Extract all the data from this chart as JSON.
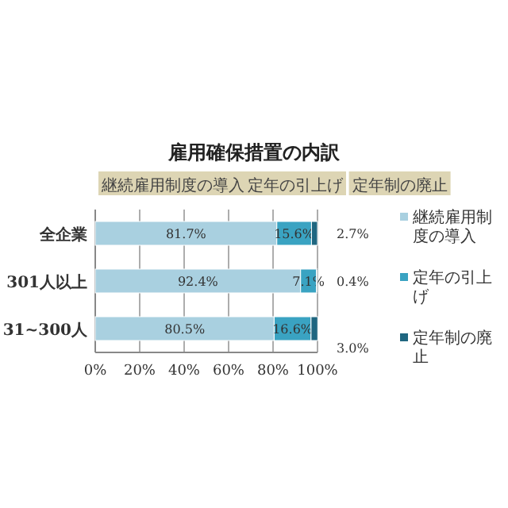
{
  "chart_data": {
    "type": "bar",
    "orientation": "horizontal",
    "stacked": true,
    "title": "雇用確保措置の内訳",
    "categories": [
      "全企業",
      "301人以上",
      "31~300人"
    ],
    "series": [
      {
        "name": "継続雇用制度の導入",
        "color": "#a9d0e0",
        "values": [
          81.7,
          92.4,
          80.5
        ],
        "value_labels": [
          "81.7%",
          "92.4%",
          "80.5%"
        ]
      },
      {
        "name": "定年の引上げ",
        "color": "#3aa3c2",
        "values": [
          15.6,
          7.1,
          16.6
        ],
        "value_labels": [
          "15.6%",
          "7.1%",
          "16.6%"
        ]
      },
      {
        "name": "定年制の廃止",
        "color": "#1f6680",
        "values": [
          2.7,
          0.4,
          3.0
        ],
        "value_labels": [
          "2.7%",
          "0.4%",
          "3.0%"
        ]
      }
    ],
    "xlim": [
      0,
      100
    ],
    "xticks": [
      {
        "value": 0,
        "label": "0%"
      },
      {
        "value": 20,
        "label": "20%"
      },
      {
        "value": 40,
        "label": "40%"
      },
      {
        "value": 60,
        "label": "60%"
      },
      {
        "value": 80,
        "label": "80%"
      },
      {
        "value": 100,
        "label": "100%"
      }
    ],
    "grid": "x",
    "legend": "right",
    "annotations": [
      "継続雇用制度の導入",
      "定年の引上げ",
      "定年制の廃止"
    ]
  }
}
